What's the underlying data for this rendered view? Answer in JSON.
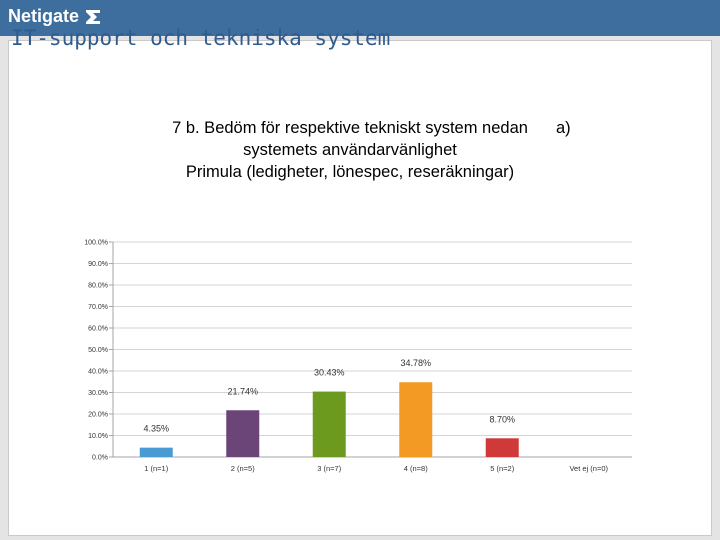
{
  "brand": {
    "name": "Netigate"
  },
  "page": {
    "title": "IT-support och tekniska system"
  },
  "chart_data": {
    "type": "bar",
    "title_lines": [
      "7 b. Bedöm för respektive tekniskt system nedan",
      "systemets användarvänlighet",
      "Primula (ledigheter, lönespec, reseräkningar)"
    ],
    "title_suffix": "a)",
    "categories": [
      "1 (n=1)",
      "2 (n=5)",
      "3 (n=7)",
      "4 (n=8)",
      "5 (n=2)",
      "Vet ej (n=0)"
    ],
    "values": [
      4.35,
      21.74,
      30.43,
      34.78,
      8.7,
      0
    ],
    "value_labels": [
      "4.35%",
      "21.74%",
      "30.43%",
      "34.78%",
      "8.70%",
      ""
    ],
    "colors": [
      "#4a9ad4",
      "#6b4478",
      "#6c9a1f",
      "#f39a25",
      "#d0393a",
      "#888888"
    ],
    "ylim": [
      0,
      100
    ],
    "yticks": [
      0,
      10,
      20,
      30,
      40,
      50,
      60,
      70,
      80,
      90,
      100
    ],
    "ytick_labels": [
      "0.0%",
      "10.0%",
      "20.0%",
      "30.0%",
      "40.0%",
      "50.0%",
      "60.0%",
      "70.0%",
      "80.0%",
      "90.0%",
      "100.0%"
    ],
    "grid": true,
    "xlabel": "",
    "ylabel": ""
  }
}
